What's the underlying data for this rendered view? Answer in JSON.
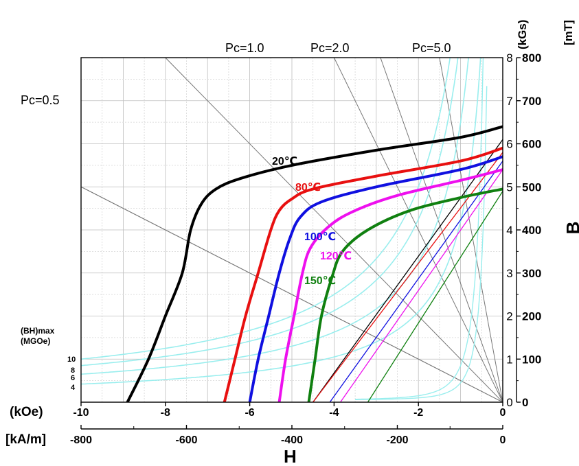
{
  "chart_data": {
    "type": "line",
    "title": "",
    "xlabel": "H",
    "ylabel": "B",
    "x_unit_primary": "(kOe)",
    "x_unit_secondary": "[kA/m]",
    "y_unit_primary": "(kGs)",
    "y_unit_secondary": "[mT]",
    "xlim": [
      -10,
      0
    ],
    "ylim": [
      0,
      8
    ],
    "x_ticks_koe": [
      "-10",
      "-8",
      "-6",
      "-4",
      "-2",
      "0"
    ],
    "x_ticks_kam": [
      "-800",
      "-600",
      "-400",
      "-200",
      "0"
    ],
    "y_ticks_kgs": [
      "0",
      "1",
      "2",
      "3",
      "4",
      "5",
      "6",
      "7",
      "8"
    ],
    "y_ticks_mt": [
      "0",
      "100",
      "200",
      "300",
      "400",
      "500",
      "600",
      "700",
      "800"
    ],
    "grid": true,
    "series": [
      {
        "name": "20℃",
        "color": "#000000",
        "points": [
          [
            -8.9,
            0
          ],
          [
            -8.4,
            1
          ],
          [
            -8.0,
            2
          ],
          [
            -7.6,
            3
          ],
          [
            -7.4,
            4
          ],
          [
            -7.15,
            4.6
          ],
          [
            -6.8,
            4.95
          ],
          [
            -6.2,
            5.2
          ],
          [
            -5.0,
            5.5
          ],
          [
            -3.0,
            5.85
          ],
          [
            -1.0,
            6.15
          ],
          [
            0,
            6.4
          ]
        ],
        "label_at": [
          -5.5,
          5.65
        ],
        "demag_line": [
          [
            -4.5,
            0
          ],
          [
            0,
            6.1
          ]
        ]
      },
      {
        "name": "80℃",
        "color": "#e81010",
        "points": [
          [
            -6.6,
            0
          ],
          [
            -6.35,
            1
          ],
          [
            -6.1,
            2
          ],
          [
            -5.8,
            3
          ],
          [
            -5.5,
            4
          ],
          [
            -5.3,
            4.45
          ],
          [
            -5.0,
            4.72
          ],
          [
            -4.5,
            4.95
          ],
          [
            -3.0,
            5.25
          ],
          [
            -1.0,
            5.6
          ],
          [
            0,
            5.9
          ]
        ],
        "label_at": [
          -4.85,
          4.98
        ],
        "demag_line": [
          [
            -4.5,
            0
          ],
          [
            0,
            5.8
          ]
        ]
      },
      {
        "name": "100℃",
        "color": "#1010e0",
        "points": [
          [
            -6.0,
            0
          ],
          [
            -5.8,
            1
          ],
          [
            -5.55,
            2
          ],
          [
            -5.3,
            3
          ],
          [
            -5.05,
            3.8
          ],
          [
            -4.8,
            4.3
          ],
          [
            -4.3,
            4.65
          ],
          [
            -3.0,
            5.0
          ],
          [
            -1.0,
            5.4
          ],
          [
            0,
            5.7
          ]
        ],
        "label_at": [
          -4.65,
          3.85
        ],
        "demag_line": [
          [
            -4.1,
            0
          ],
          [
            0,
            5.6
          ]
        ]
      },
      {
        "name": "120℃",
        "color": "#ee10ee",
        "points": [
          [
            -5.3,
            0
          ],
          [
            -5.15,
            1
          ],
          [
            -4.95,
            2
          ],
          [
            -4.75,
            3
          ],
          [
            -4.55,
            3.6
          ],
          [
            -4.1,
            4.1
          ],
          [
            -3.5,
            4.45
          ],
          [
            -2.5,
            4.8
          ],
          [
            -1.0,
            5.15
          ],
          [
            0,
            5.4
          ]
        ],
        "label_at": [
          -4.25,
          3.4
        ],
        "demag_line": [
          [
            -3.85,
            0
          ],
          [
            0,
            5.4
          ]
        ]
      },
      {
        "name": "150℃",
        "color": "#108010",
        "points": [
          [
            -4.6,
            0
          ],
          [
            -4.45,
            1
          ],
          [
            -4.3,
            2
          ],
          [
            -4.05,
            2.9
          ],
          [
            -3.8,
            3.5
          ],
          [
            -3.2,
            4.0
          ],
          [
            -2.2,
            4.45
          ],
          [
            -1.0,
            4.75
          ],
          [
            0,
            4.95
          ]
        ],
        "label_at": [
          -4.65,
          2.8
        ],
        "demag_line": [
          [
            -3.2,
            0
          ],
          [
            0,
            4.9
          ]
        ]
      }
    ],
    "permeance_coefficients": [
      {
        "label": "Pc=0.5",
        "label_x": -10.8,
        "label_y": 7.0
      },
      {
        "label": "Pc=1.0",
        "label_x": -6.0,
        "label_y": 8.25
      },
      {
        "label": "Pc=2.0",
        "label_x": -4.0,
        "label_y": 8.25
      },
      {
        "label": "Pc=5.0",
        "label_x": -1.5,
        "label_y": 8.25
      }
    ],
    "bhmax": {
      "title_line1": "(BH)max",
      "title_line2": "(MGOe)",
      "curves": [
        {
          "label": "10",
          "value": 10
        },
        {
          "label": "8",
          "value": 8
        },
        {
          "label": "6",
          "value": 6
        },
        {
          "label": "4",
          "value": 4
        }
      ],
      "color": "#99eeee"
    }
  }
}
